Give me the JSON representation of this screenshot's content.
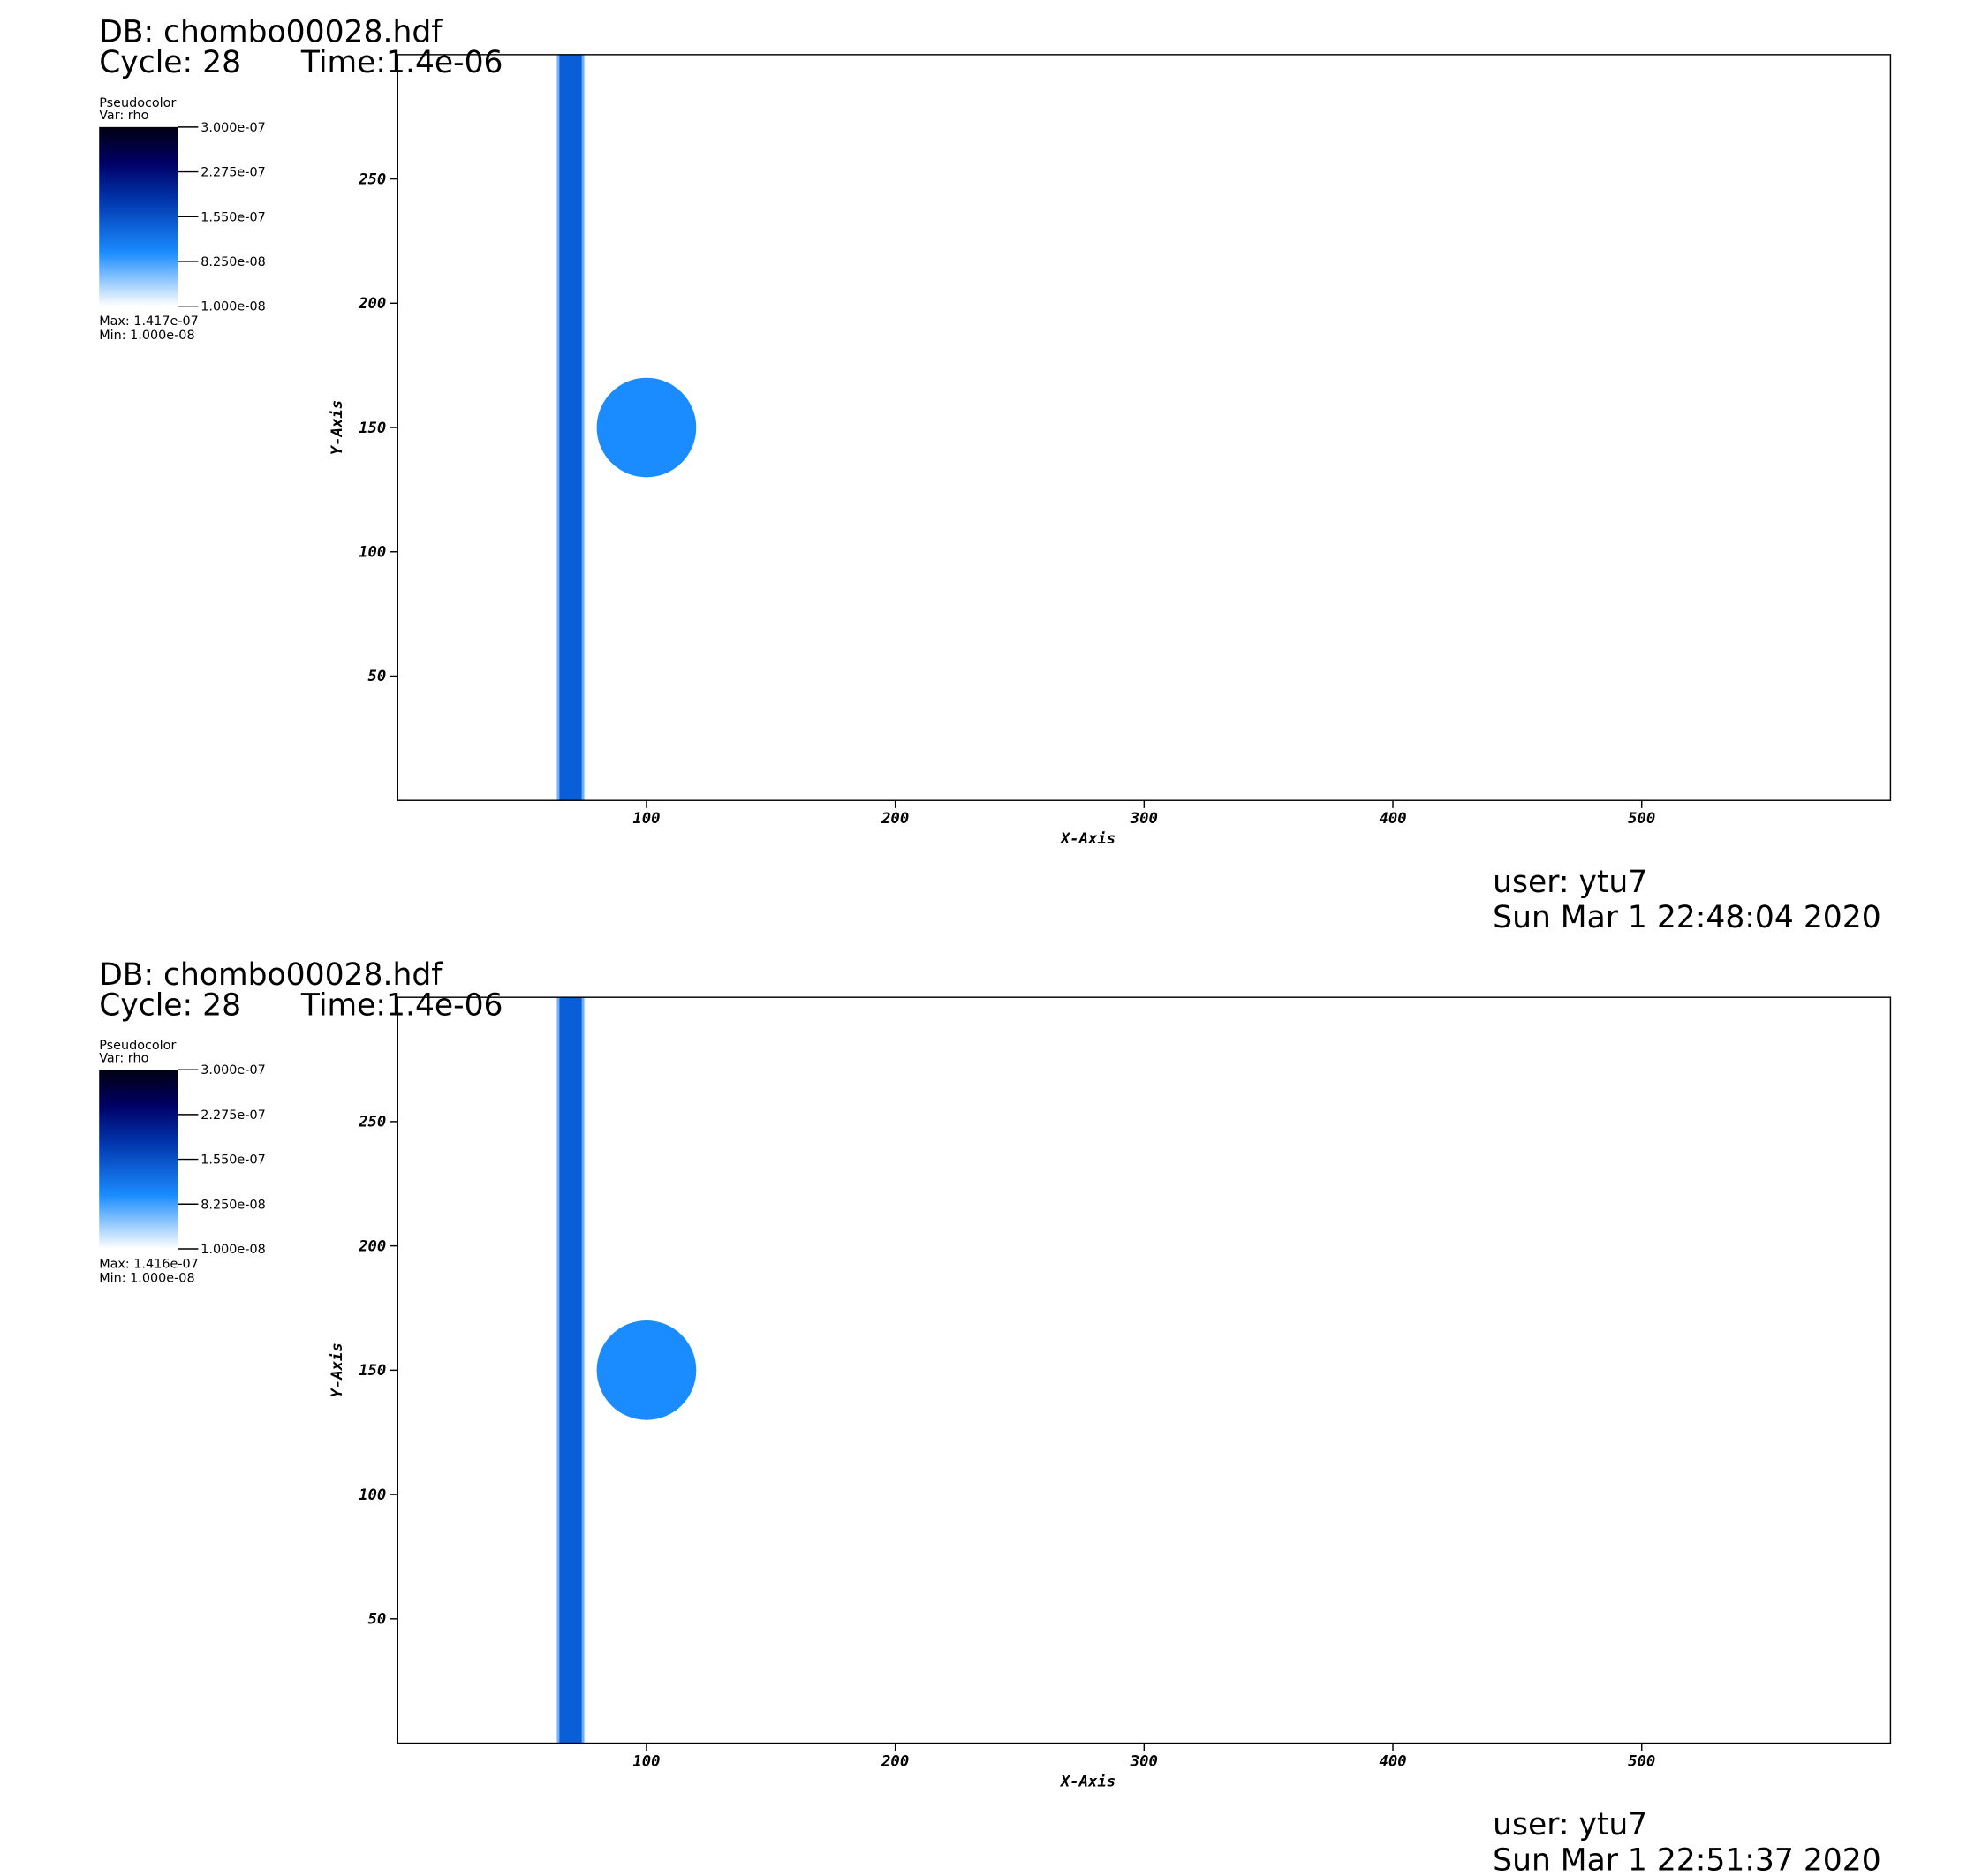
{
  "chart_data": [
    {
      "type": "pseudocolor",
      "db": "DB: chombo00028.hdf",
      "cycle": "Cycle: 28",
      "time": "Time:1.4e-06",
      "legend_title": "Pseudocolor",
      "legend_var": "Var: rho",
      "colorbar_lim": [
        1e-08,
        3e-07
      ],
      "colorbar_ticks": [
        {
          "value": 3e-07,
          "label": "3.000e-07"
        },
        {
          "value": 2.275e-07,
          "label": "2.275e-07"
        },
        {
          "value": 1.55e-07,
          "label": "1.550e-07"
        },
        {
          "value": 8.25e-08,
          "label": "8.250e-08"
        },
        {
          "value": 1e-08,
          "label": "1.000e-08"
        }
      ],
      "max_text": "Max:  1.417e-07",
      "min_text": "Min:  1.000e-08",
      "x_label": "X-Axis",
      "y_label": "Y-Axis",
      "xlim": [
        0,
        600
      ],
      "ylim": [
        0,
        300
      ],
      "xticks": [
        100,
        200,
        300,
        400,
        500
      ],
      "yticks": [
        50,
        100,
        150,
        200,
        250
      ],
      "band": {
        "x": [
          64,
          75
        ],
        "color": "#0a5fd8"
      },
      "circle": {
        "x": 100,
        "y": 150,
        "r": 20,
        "color": "#1a8cff"
      },
      "user": "user: ytu7",
      "date": "Sun Mar  1 22:48:04 2020"
    },
    {
      "type": "pseudocolor",
      "db": "DB: chombo00028.hdf",
      "cycle": "Cycle: 28",
      "time": "Time:1.4e-06",
      "legend_title": "Pseudocolor",
      "legend_var": "Var: rho",
      "colorbar_lim": [
        1e-08,
        3e-07
      ],
      "colorbar_ticks": [
        {
          "value": 3e-07,
          "label": "3.000e-07"
        },
        {
          "value": 2.275e-07,
          "label": "2.275e-07"
        },
        {
          "value": 1.55e-07,
          "label": "1.550e-07"
        },
        {
          "value": 8.25e-08,
          "label": "8.250e-08"
        },
        {
          "value": 1e-08,
          "label": "1.000e-08"
        }
      ],
      "max_text": "Max:  1.416e-07",
      "min_text": "Min:  1.000e-08",
      "x_label": "X-Axis",
      "y_label": "Y-Axis",
      "xlim": [
        0,
        600
      ],
      "ylim": [
        0,
        300
      ],
      "xticks": [
        100,
        200,
        300,
        400,
        500
      ],
      "yticks": [
        50,
        100,
        150,
        200,
        250
      ],
      "band": {
        "x": [
          64,
          75
        ],
        "color": "#0a5fd8"
      },
      "circle": {
        "x": 100,
        "y": 150,
        "r": 20,
        "color": "#1a8cff"
      },
      "user": "user: ytu7",
      "date": "Sun Mar  1 22:51:37 2020"
    }
  ]
}
